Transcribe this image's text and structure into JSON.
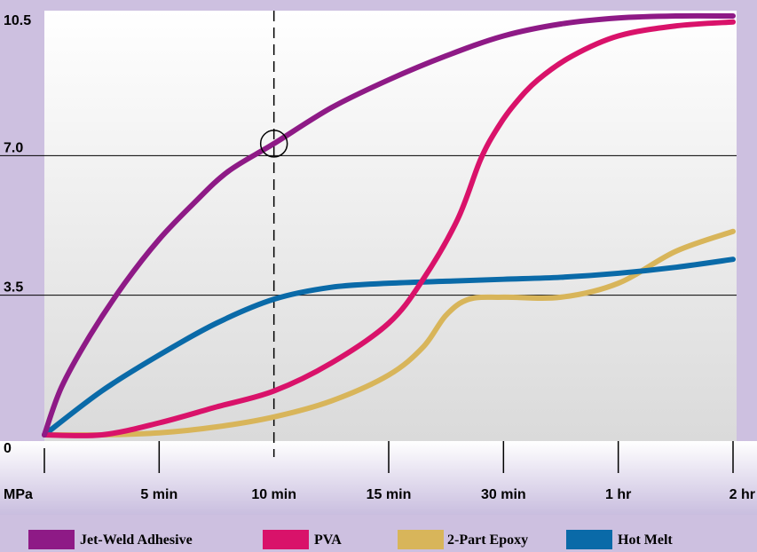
{
  "chart_data": {
    "type": "line",
    "ylabel": "MPa",
    "ylim": [
      0,
      10.5
    ],
    "y_ticks": [
      "0",
      "3.5",
      "7.0",
      "10.5"
    ],
    "y_tick_values": [
      0,
      3.5,
      7.0,
      10.5
    ],
    "x_ticks": [
      "5 min",
      "10 min",
      "15 min",
      "30 min",
      "1 hr",
      "2 hr"
    ],
    "x_tick_values": [
      1,
      2,
      3,
      4,
      5,
      6
    ],
    "grid": "horizontal at 3.5 and 7.0",
    "reference_line": {
      "x": 2,
      "marked_point": [
        2,
        7.3
      ]
    },
    "legend_position": "bottom",
    "series": [
      {
        "name": "Jet-Weld Adhesive",
        "color": "#8e1a86",
        "x": [
          0,
          0.15,
          0.4,
          0.7,
          1.0,
          1.3,
          1.6,
          2.0,
          2.5,
          3.0,
          3.5,
          4.0,
          4.5,
          5.0,
          5.5,
          6.0
        ],
        "y": [
          0,
          1.2,
          2.5,
          3.8,
          4.9,
          5.8,
          6.6,
          7.3,
          8.2,
          8.9,
          9.5,
          10.0,
          10.3,
          10.45,
          10.5,
          10.5
        ]
      },
      {
        "name": "PVA",
        "color": "#d9126a",
        "x": [
          0,
          0.5,
          1.0,
          1.5,
          2.0,
          2.5,
          3.0,
          3.3,
          3.6,
          3.8,
          3.95,
          4.1,
          4.3,
          4.6,
          5.0,
          5.5,
          6.0
        ],
        "y": [
          0,
          0,
          0.3,
          0.7,
          1.1,
          1.8,
          2.8,
          3.9,
          5.4,
          6.9,
          7.7,
          8.3,
          8.9,
          9.5,
          10.0,
          10.25,
          10.35
        ]
      },
      {
        "name": "2-Part Epoxy",
        "color": "#d8b55a",
        "x": [
          0,
          0.5,
          1.0,
          1.5,
          2.0,
          2.5,
          3.0,
          3.3,
          3.5,
          3.7,
          4.0,
          4.5,
          5.0,
          5.5,
          6.0
        ],
        "y": [
          0,
          0,
          0.05,
          0.2,
          0.45,
          0.85,
          1.5,
          2.2,
          3.0,
          3.4,
          3.45,
          3.45,
          3.8,
          4.6,
          5.1
        ]
      },
      {
        "name": "Hot Melt",
        "color": "#0a6aa8",
        "x": [
          0,
          0.5,
          1.0,
          1.5,
          2.0,
          2.5,
          3.0,
          3.5,
          4.0,
          4.5,
          5.0,
          5.5,
          6.0
        ],
        "y": [
          0,
          1.1,
          2.0,
          2.8,
          3.4,
          3.7,
          3.8,
          3.85,
          3.9,
          3.95,
          4.05,
          4.2,
          4.4
        ]
      }
    ]
  }
}
